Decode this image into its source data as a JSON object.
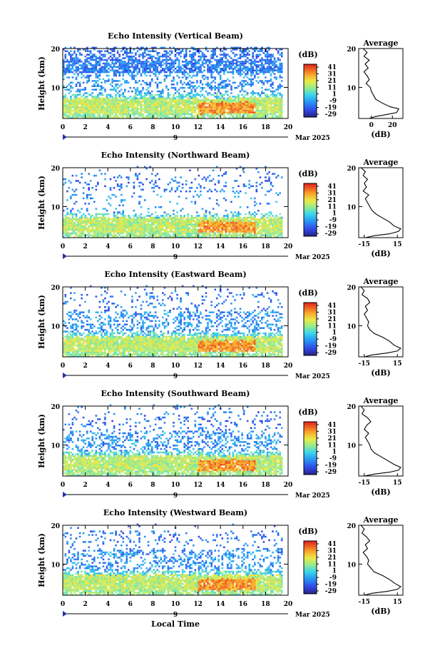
{
  "chart_data": [
    {
      "type": "heatmap",
      "title": "Echo Intensity (Vertical Beam)",
      "ylabel": "Height (km)",
      "xlim": [
        0,
        20
      ],
      "ylim": [
        2,
        20
      ],
      "xticks": [
        "0",
        "2",
        "4",
        "6",
        "8",
        "10",
        "12",
        "14",
        "16",
        "18",
        "20"
      ],
      "yticks": [
        "10",
        "20"
      ],
      "date_label": "Mar 2025",
      "day_marker": "9",
      "colorbar": {
        "label": "(dB)",
        "ticks": [
          "41",
          "31",
          "21",
          "11",
          "1",
          "-9",
          "-19",
          "-29"
        ]
      },
      "profile": {
        "title": "Average",
        "xlabel": "(dB)",
        "xticks": [
          "0",
          "20"
        ],
        "xlim": [
          -12,
          30
        ],
        "points": [
          [
            -8,
            20
          ],
          [
            -4,
            19
          ],
          [
            -7,
            18
          ],
          [
            -2,
            17
          ],
          [
            -6,
            16
          ],
          [
            -3,
            15
          ],
          [
            -7,
            14
          ],
          [
            -4,
            13
          ],
          [
            -2,
            12
          ],
          [
            -5,
            11
          ],
          [
            -1,
            10
          ],
          [
            0,
            9
          ],
          [
            2,
            8
          ],
          [
            4,
            7
          ],
          [
            10,
            6
          ],
          [
            18,
            5
          ],
          [
            26,
            4.5
          ],
          [
            24,
            3.5
          ],
          [
            14,
            3
          ],
          [
            4,
            2.5
          ],
          [
            -2,
            2
          ]
        ]
      }
    },
    {
      "type": "heatmap",
      "title": "Echo Intensity (Northward Beam)",
      "ylabel": "Height (km)",
      "xlim": [
        0,
        20
      ],
      "ylim": [
        2,
        20
      ],
      "xticks": [
        "0",
        "2",
        "4",
        "6",
        "8",
        "10",
        "12",
        "14",
        "16",
        "18",
        "20"
      ],
      "yticks": [
        "10",
        "20"
      ],
      "date_label": "Mar 2025",
      "day_marker": "9",
      "colorbar": {
        "label": "(dB)",
        "ticks": [
          "41",
          "31",
          "21",
          "11",
          "1",
          "-9",
          "-19",
          "-29"
        ]
      },
      "profile": {
        "title": "Average",
        "xlabel": "(dB)",
        "xticks": [
          "-15",
          "15"
        ],
        "xlim": [
          -20,
          20
        ],
        "points": [
          [
            -18,
            20
          ],
          [
            -14,
            19
          ],
          [
            -16,
            18
          ],
          [
            -12,
            17
          ],
          [
            -15,
            16
          ],
          [
            -13,
            15
          ],
          [
            -16,
            14
          ],
          [
            -11,
            13
          ],
          [
            -14,
            12
          ],
          [
            -12,
            11
          ],
          [
            -10,
            10
          ],
          [
            -8,
            9
          ],
          [
            -4,
            8
          ],
          [
            2,
            7
          ],
          [
            8,
            6
          ],
          [
            12,
            5
          ],
          [
            18,
            4.3
          ],
          [
            16,
            3.6
          ],
          [
            8,
            3
          ],
          [
            -6,
            2.5
          ],
          [
            -14,
            2
          ]
        ]
      }
    },
    {
      "type": "heatmap",
      "title": "Echo Intensity (Eastward Beam)",
      "ylabel": "Height (km)",
      "xlim": [
        0,
        20
      ],
      "ylim": [
        2,
        20
      ],
      "xticks": [
        "0",
        "2",
        "4",
        "6",
        "8",
        "10",
        "12",
        "14",
        "16",
        "18",
        "20"
      ],
      "yticks": [
        "10",
        "20"
      ],
      "date_label": "Mar 2025",
      "day_marker": "9",
      "colorbar": {
        "label": "(dB)",
        "ticks": [
          "41",
          "31",
          "21",
          "11",
          "1",
          "-9",
          "-19",
          "-29"
        ]
      },
      "profile": {
        "title": "Average",
        "xlabel": "(dB)",
        "xticks": [
          "-15",
          "15"
        ],
        "xlim": [
          -20,
          20
        ],
        "points": [
          [
            -18,
            20
          ],
          [
            -15,
            19
          ],
          [
            -17,
            18
          ],
          [
            -12,
            17
          ],
          [
            -10,
            16
          ],
          [
            -14,
            15
          ],
          [
            -12,
            14
          ],
          [
            -15,
            13
          ],
          [
            -13,
            12
          ],
          [
            -11,
            11
          ],
          [
            -12,
            10
          ],
          [
            -10,
            9
          ],
          [
            -6,
            8
          ],
          [
            2,
            7
          ],
          [
            8,
            6
          ],
          [
            12,
            5
          ],
          [
            18,
            4.2
          ],
          [
            15,
            3.5
          ],
          [
            6,
            3
          ],
          [
            -8,
            2.5
          ],
          [
            -15,
            2
          ]
        ]
      }
    },
    {
      "type": "heatmap",
      "title": "Echo Intensity (Southward Beam)",
      "ylabel": "Height (km)",
      "xlim": [
        0,
        20
      ],
      "ylim": [
        2,
        20
      ],
      "xticks": [
        "0",
        "2",
        "4",
        "6",
        "8",
        "10",
        "12",
        "14",
        "16",
        "18",
        "20"
      ],
      "yticks": [
        "10",
        "20"
      ],
      "date_label": "Mar 2025",
      "day_marker": "9",
      "colorbar": {
        "label": "(dB)",
        "ticks": [
          "41",
          "31",
          "21",
          "11",
          "1",
          "-9",
          "-19",
          "-29"
        ]
      },
      "profile": {
        "title": "Average",
        "xlabel": "(dB)",
        "xticks": [
          "-15",
          "15"
        ],
        "xlim": [
          -20,
          20
        ],
        "points": [
          [
            -18,
            20
          ],
          [
            -15,
            19
          ],
          [
            -17,
            18
          ],
          [
            -12,
            17
          ],
          [
            -9,
            16
          ],
          [
            -13,
            15
          ],
          [
            -15,
            14
          ],
          [
            -11,
            13
          ],
          [
            -14,
            12
          ],
          [
            -12,
            11
          ],
          [
            -10,
            10
          ],
          [
            -9,
            9
          ],
          [
            -6,
            8
          ],
          [
            0,
            7
          ],
          [
            6,
            6
          ],
          [
            12,
            5
          ],
          [
            18,
            4.2
          ],
          [
            16,
            3.5
          ],
          [
            8,
            3
          ],
          [
            -6,
            2.5
          ],
          [
            -15,
            2
          ]
        ]
      }
    },
    {
      "type": "heatmap",
      "title": "Echo Intensity (Westward Beam)",
      "ylabel": "Height (km)",
      "xlabel": "Local Time",
      "xlim": [
        0,
        20
      ],
      "ylim": [
        2,
        20
      ],
      "xticks": [
        "0",
        "2",
        "4",
        "6",
        "8",
        "10",
        "12",
        "14",
        "16",
        "18",
        "20"
      ],
      "yticks": [
        "10",
        "20"
      ],
      "date_label": "Mar 2025",
      "day_marker": "9",
      "colorbar": {
        "label": "(dB)",
        "ticks": [
          "41",
          "31",
          "21",
          "11",
          "1",
          "-9",
          "-19",
          "-29"
        ]
      },
      "profile": {
        "title": "Average",
        "xlabel": "(dB)",
        "xticks": [
          "-15",
          "15"
        ],
        "xlim": [
          -20,
          20
        ],
        "points": [
          [
            -18,
            20
          ],
          [
            -15,
            19
          ],
          [
            -17,
            18
          ],
          [
            -13,
            17
          ],
          [
            -10,
            16
          ],
          [
            -14,
            15
          ],
          [
            -12,
            14
          ],
          [
            -16,
            13
          ],
          [
            -13,
            12
          ],
          [
            -11,
            11
          ],
          [
            -12,
            10
          ],
          [
            -9,
            9
          ],
          [
            -6,
            8
          ],
          [
            2,
            7
          ],
          [
            8,
            6
          ],
          [
            13,
            5
          ],
          [
            18,
            4.2
          ],
          [
            15,
            3.5
          ],
          [
            6,
            3
          ],
          [
            -8,
            2.5
          ],
          [
            -15,
            2
          ]
        ]
      }
    }
  ]
}
